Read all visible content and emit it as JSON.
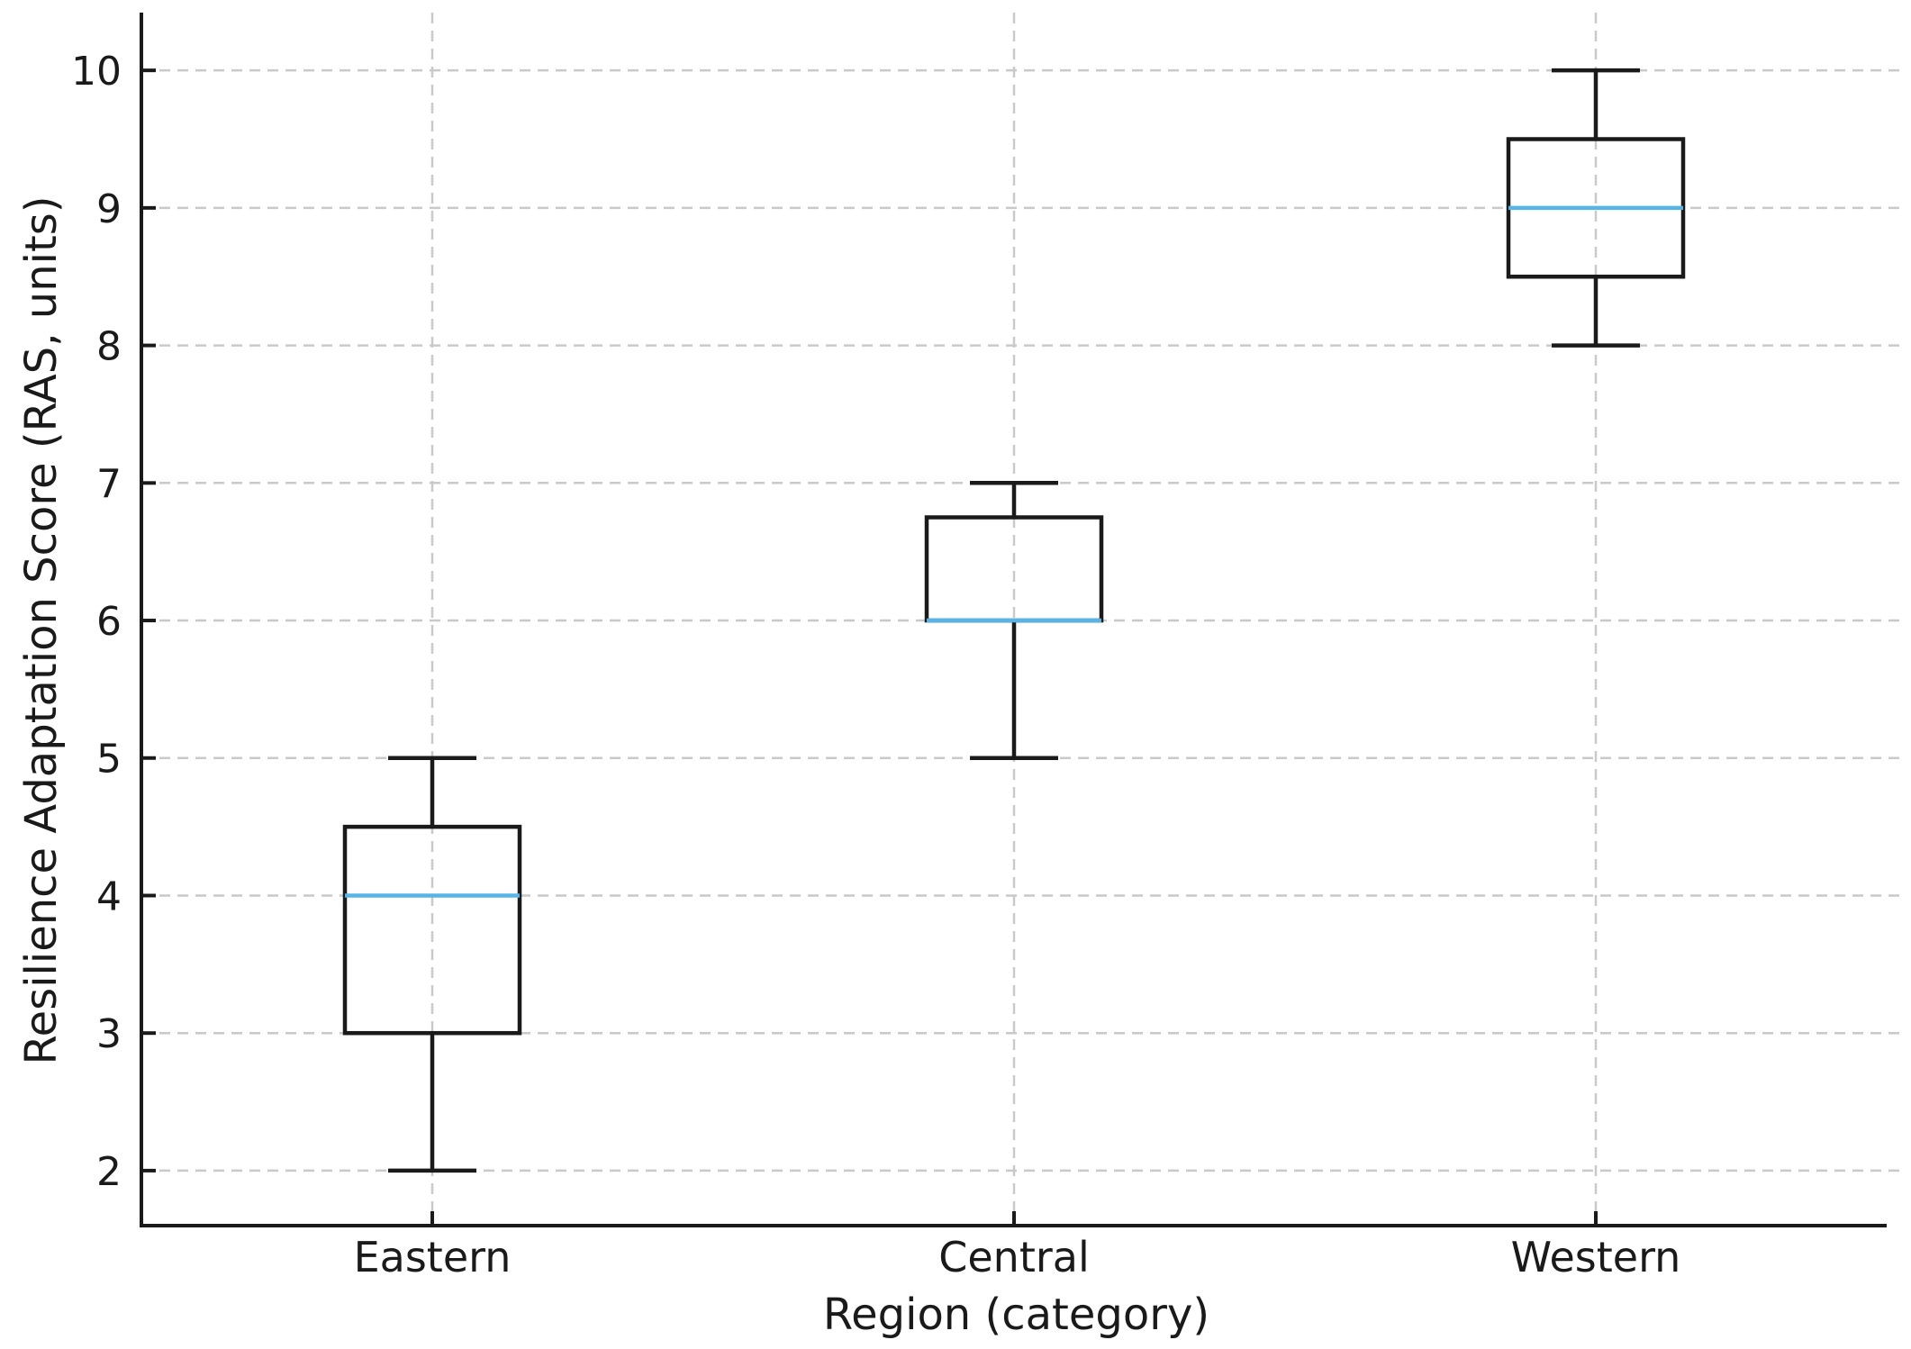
{
  "figure": {
    "background": "#ffffff"
  },
  "chart_data": {
    "type": "box",
    "title": "",
    "xlabel": "Region (category)",
    "ylabel": "Resilience Adaptation Score (RAS, units)",
    "categories": [
      "Eastern",
      "Central",
      "Western"
    ],
    "series": [
      {
        "name": "Eastern",
        "whisker_low": 2,
        "q1": 3,
        "median": 4,
        "q3": 4.5,
        "whisker_high": 5
      },
      {
        "name": "Central",
        "whisker_low": 5,
        "q1": 6,
        "median": 6,
        "q3": 6.75,
        "whisker_high": 7
      },
      {
        "name": "Western",
        "whisker_low": 8,
        "q1": 8.5,
        "median": 9,
        "q3": 9.5,
        "whisker_high": 10
      }
    ],
    "yticks": [
      2,
      3,
      4,
      5,
      6,
      7,
      8,
      9,
      10
    ],
    "ylim": [
      1.6,
      10.42
    ],
    "grid": "horizontal and vertical dashed gridlines",
    "legend_position": "none",
    "outliers": [],
    "colors": {
      "box_edge": "#1a1a1a",
      "median": "#56b4e9",
      "whisker": "#1a1a1a",
      "grid": "#c9c9c9",
      "axis": "#1a1a1a",
      "text": "#1a1a1a"
    }
  }
}
